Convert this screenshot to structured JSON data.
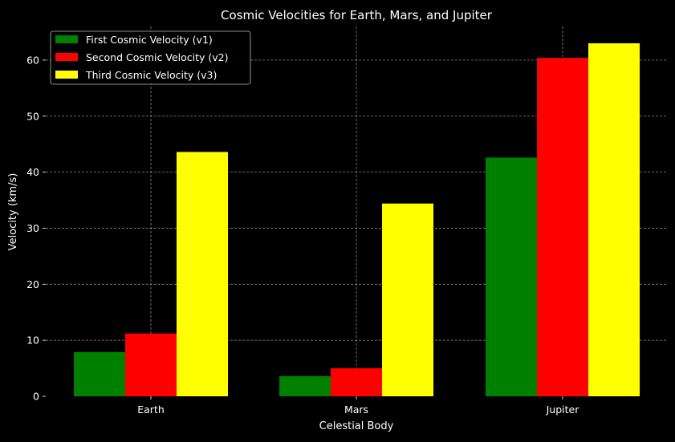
{
  "chart_data": {
    "type": "bar",
    "title": "Cosmic Velocities for Earth, Mars, and Jupiter",
    "xlabel": "Celestial Body",
    "ylabel": "Velocity (km/s)",
    "categories": [
      "Earth",
      "Mars",
      "Jupiter"
    ],
    "series": [
      {
        "name": "First Cosmic Velocity (v1)",
        "color": "#008000",
        "values": [
          7.9,
          3.6,
          42.6
        ]
      },
      {
        "name": "Second Cosmic Velocity (v2)",
        "color": "#ff0000",
        "values": [
          11.2,
          5.0,
          60.4
        ]
      },
      {
        "name": "Third Cosmic Velocity (v3)",
        "color": "#ffff00",
        "values": [
          43.6,
          34.4,
          63.0
        ]
      }
    ],
    "yticks": [
      0,
      10,
      20,
      30,
      40,
      50,
      60
    ],
    "ylim": [
      0,
      66
    ],
    "grid": true,
    "legend_position": "top-left",
    "background": "#000000"
  }
}
